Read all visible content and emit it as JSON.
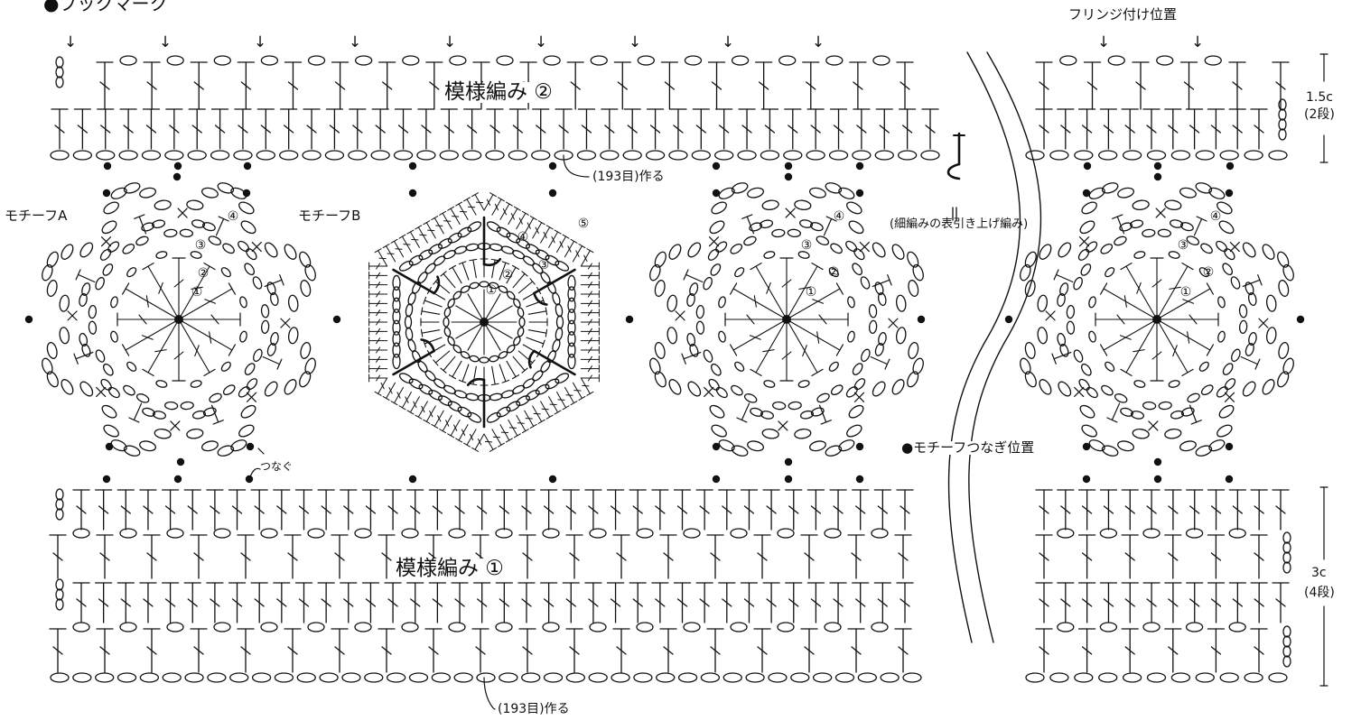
{
  "labels": {
    "heading": "●ブックマーク",
    "fringe_position": "フリンジ付け位置",
    "pattern_2": "模様編み ②",
    "pattern_1": "模様編み ①",
    "cast_on_top": "(193目)作る",
    "cast_on_bottom": "(193目)作る",
    "motif_a": "モチーフA",
    "motif_b": "モチーフB",
    "bpsc_note": "(細編みの表引き上げ編み)",
    "motif_join_position": "●モチーフつなぎ位置",
    "join": "つなぐ",
    "height_top": "1.5c",
    "rows_top": "(2段)",
    "height_bottom": "3c",
    "rows_bottom": "(4段)"
  },
  "round_marks": {
    "r1": "①",
    "r2": "②",
    "r3": "③",
    "r4": "④",
    "r5": "⑤"
  },
  "arrow_glyph": "↓",
  "colors": {
    "ink": "#111111",
    "background": "#ffffff"
  }
}
